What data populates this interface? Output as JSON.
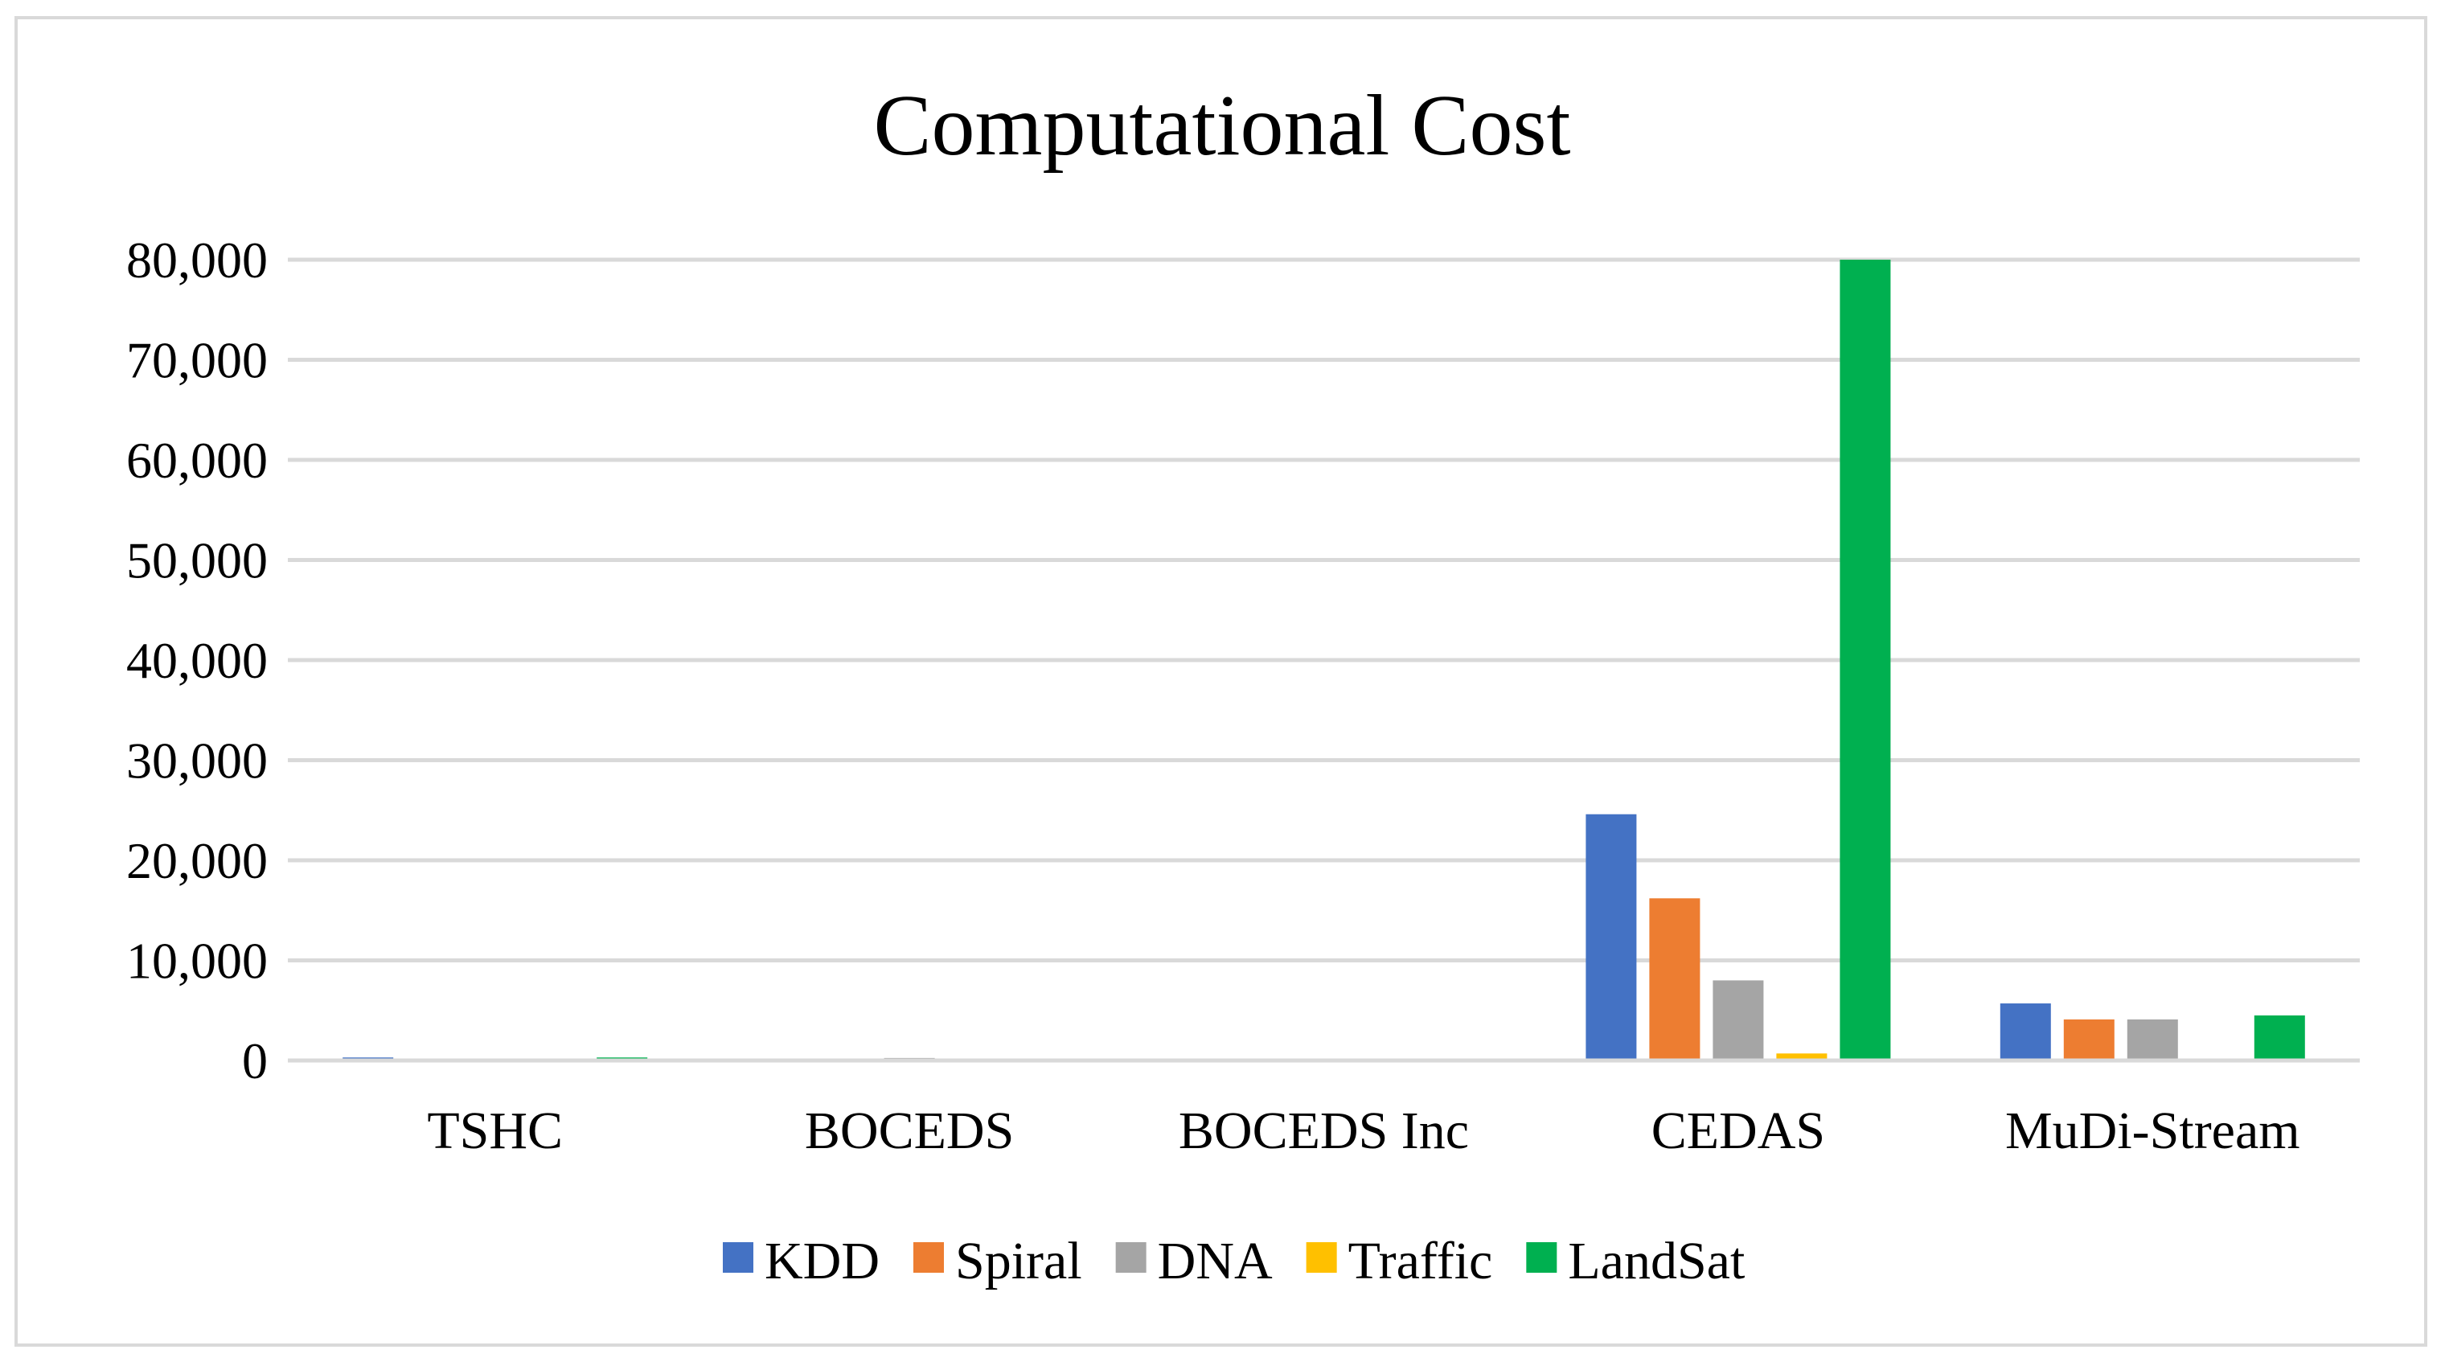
{
  "chart_data": {
    "type": "bar",
    "title": "Computational Cost",
    "xlabel": "",
    "ylabel": "",
    "ylim": [
      0,
      80000
    ],
    "yticks": [
      0,
      10000,
      20000,
      30000,
      40000,
      50000,
      60000,
      70000,
      80000
    ],
    "ytick_labels": [
      "0",
      "10,000",
      "20,000",
      "30,000",
      "40,000",
      "50,000",
      "60,000",
      "70,000",
      "80,000"
    ],
    "grid": true,
    "legend_position": "bottom",
    "categories": [
      "TSHC",
      "BOCEDS",
      "BOCEDS Inc",
      "CEDAS",
      "MuDi-Stream"
    ],
    "series": [
      {
        "name": "KDD",
        "color": "#4472c4",
        "values": [
          300,
          30,
          20,
          24600,
          5700
        ]
      },
      {
        "name": "Spiral",
        "color": "#ed7d31",
        "values": [
          200,
          20,
          20,
          16200,
          4100
        ]
      },
      {
        "name": "DNA",
        "color": "#a5a5a5",
        "values": [
          150,
          250,
          20,
          8000,
          4100
        ]
      },
      {
        "name": "Traffic",
        "color": "#ffc000",
        "values": [
          10,
          10,
          10,
          700,
          10
        ]
      },
      {
        "name": "LandSat",
        "color": "#00b050",
        "values": [
          300,
          200,
          200,
          80000,
          4500
        ]
      }
    ]
  }
}
